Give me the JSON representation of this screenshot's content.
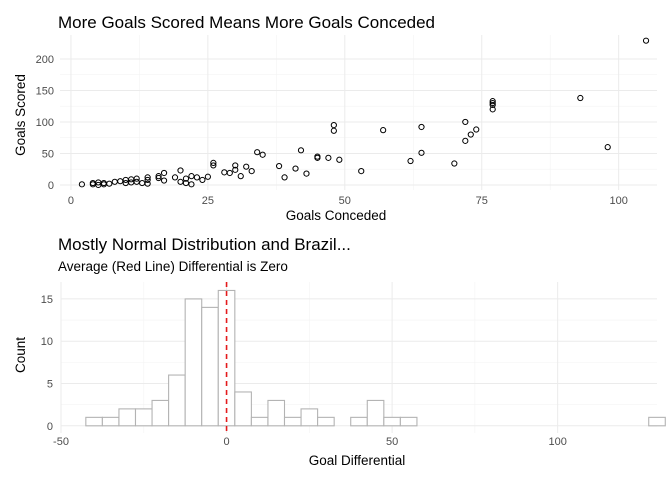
{
  "chart_data": [
    {
      "type": "scatter",
      "title": "More Goals Scored Means More Goals Conceded",
      "xlabel": "Goals Conceded",
      "ylabel": "Goals Scored",
      "xlim": [
        -2,
        107
      ],
      "ylim": [
        -8,
        238
      ],
      "xticks": [
        0,
        25,
        50,
        75,
        100
      ],
      "yticks": [
        0,
        50,
        100,
        150,
        200
      ],
      "grid": true,
      "points": [
        [
          2,
          1
        ],
        [
          4,
          1
        ],
        [
          4,
          3
        ],
        [
          5,
          0
        ],
        [
          5,
          4
        ],
        [
          6,
          1
        ],
        [
          6,
          3
        ],
        [
          7,
          2
        ],
        [
          8,
          5
        ],
        [
          9,
          6
        ],
        [
          10,
          3
        ],
        [
          10,
          8
        ],
        [
          11,
          4
        ],
        [
          11,
          9
        ],
        [
          12,
          5
        ],
        [
          12,
          10
        ],
        [
          13,
          3
        ],
        [
          14,
          8
        ],
        [
          14,
          2
        ],
        [
          14,
          12
        ],
        [
          16,
          11
        ],
        [
          16,
          14
        ],
        [
          17,
          7
        ],
        [
          17,
          19
        ],
        [
          19,
          12
        ],
        [
          20,
          5
        ],
        [
          20,
          23
        ],
        [
          21,
          3
        ],
        [
          21,
          10
        ],
        [
          22,
          1
        ],
        [
          22,
          14
        ],
        [
          23,
          12
        ],
        [
          24,
          8
        ],
        [
          25,
          13
        ],
        [
          26,
          31
        ],
        [
          26,
          35
        ],
        [
          28,
          20
        ],
        [
          29,
          19
        ],
        [
          30,
          24
        ],
        [
          30,
          31
        ],
        [
          31,
          14
        ],
        [
          32,
          29
        ],
        [
          33,
          22
        ],
        [
          34,
          52
        ],
        [
          35,
          48
        ],
        [
          38,
          30
        ],
        [
          39,
          12
        ],
        [
          41,
          26
        ],
        [
          42,
          55
        ],
        [
          43,
          18
        ],
        [
          45,
          43
        ],
        [
          45,
          45
        ],
        [
          47,
          43
        ],
        [
          48,
          86
        ],
        [
          48,
          95
        ],
        [
          49,
          40
        ],
        [
          53,
          22
        ],
        [
          57,
          87
        ],
        [
          62,
          38
        ],
        [
          64,
          51
        ],
        [
          64,
          92
        ],
        [
          70,
          34
        ],
        [
          72,
          70
        ],
        [
          72,
          100
        ],
        [
          73,
          80
        ],
        [
          74,
          88
        ],
        [
          77,
          120
        ],
        [
          77,
          127
        ],
        [
          77,
          130
        ],
        [
          77,
          133
        ],
        [
          93,
          138
        ],
        [
          98,
          60
        ],
        [
          105,
          229
        ]
      ]
    },
    {
      "type": "histogram",
      "title": "Mostly Normal Distribution and Brazil...",
      "subtitle": "Average (Red Line) Differential is Zero",
      "xlabel": "Goal Differential",
      "ylabel": "Count",
      "xlim": [
        -50,
        130
      ],
      "ylim": [
        0,
        17
      ],
      "xticks": [
        -50,
        0,
        50,
        100
      ],
      "yticks": [
        0,
        5,
        10,
        15
      ],
      "grid": true,
      "bin_width": 5,
      "bin_start": -42.5,
      "counts": [
        1,
        1,
        2,
        2,
        3,
        6,
        15,
        14,
        16,
        4,
        1,
        3,
        1,
        2,
        1,
        0,
        1,
        3,
        1,
        1,
        0,
        0,
        0,
        0,
        0,
        0,
        0,
        0,
        0,
        0,
        0,
        0,
        0,
        0,
        1
      ],
      "mean_line": {
        "x": 0,
        "color": "#e41a1c"
      },
      "bar_fill": "#ffffff",
      "bar_stroke": "#b3b3b3"
    }
  ]
}
